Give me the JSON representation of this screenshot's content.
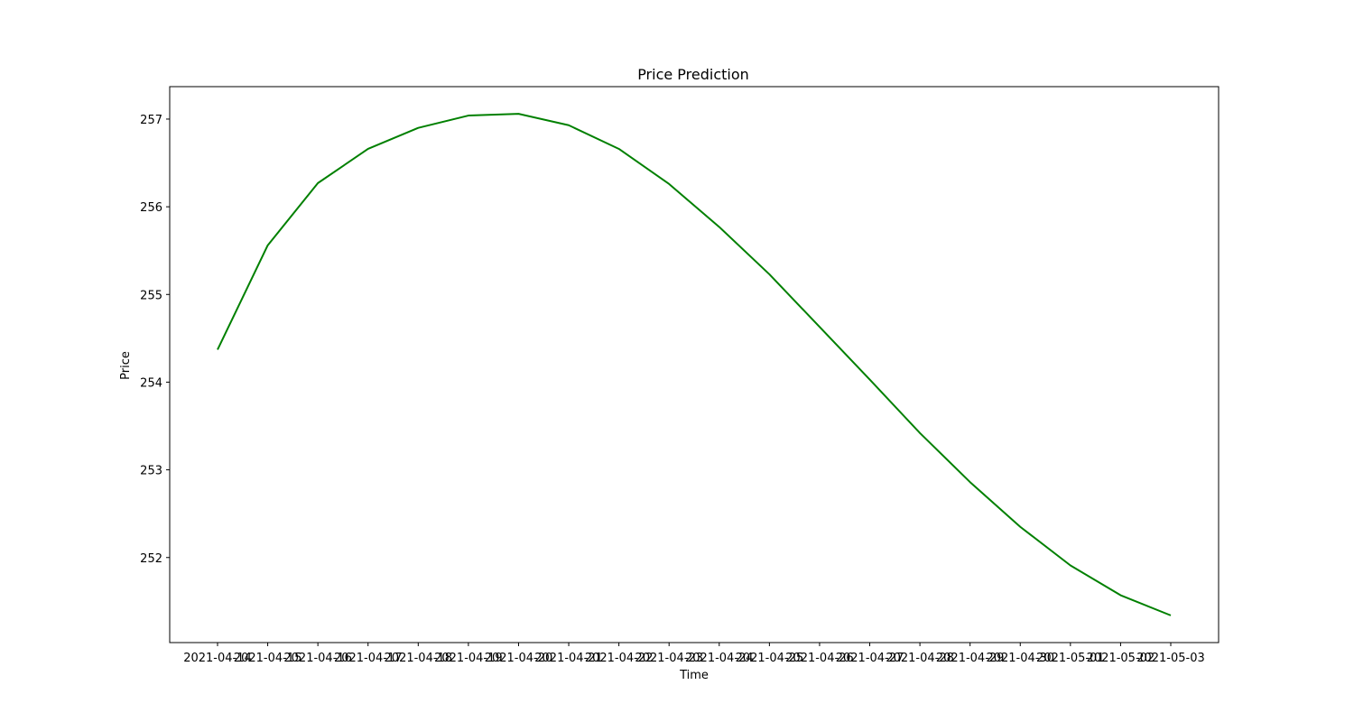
{
  "chart_data": {
    "type": "line",
    "title": "Price Prediction",
    "xlabel": "Time",
    "ylabel": "Price",
    "categories": [
      "2021-04-14",
      "2021-04-15",
      "2021-04-16",
      "2021-04-17",
      "2021-04-18",
      "2021-04-19",
      "2021-04-20",
      "2021-04-21",
      "2021-04-22",
      "2021-04-23",
      "2021-04-24",
      "2021-04-25",
      "2021-04-26",
      "2021-04-27",
      "2021-04-28",
      "2021-04-29",
      "2021-04-30",
      "2021-05-01",
      "2021-05-02",
      "2021-05-03"
    ],
    "series": [
      {
        "color": "#008000",
        "values": [
          254.37,
          255.56,
          256.27,
          256.66,
          256.9,
          257.04,
          257.06,
          256.93,
          256.66,
          256.26,
          255.77,
          255.23,
          254.63,
          254.03,
          253.42,
          252.86,
          252.35,
          251.91,
          251.57,
          251.34
        ]
      }
    ],
    "yticks": [
      "252",
      "253",
      "254",
      "255",
      "256",
      "257"
    ],
    "ylim": [
      251.03,
      257.37
    ],
    "grid": false,
    "legend": "none"
  }
}
